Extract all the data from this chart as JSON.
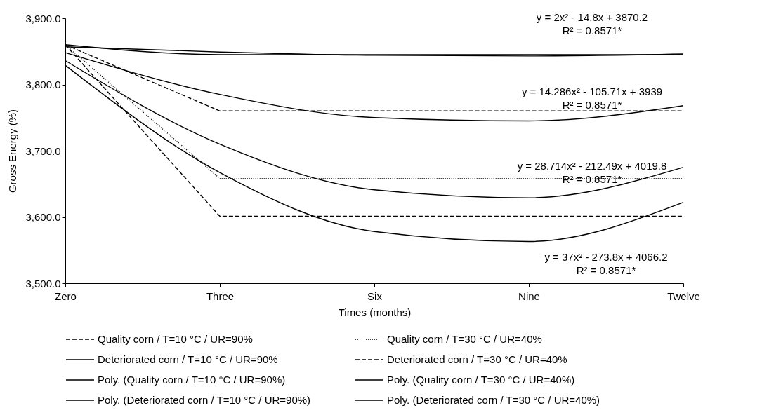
{
  "chart_data": {
    "type": "line",
    "xlabel": "Times (months)",
    "ylabel": "Gross Energy (%)",
    "categories": [
      "Zero",
      "Three",
      "Six",
      "Nine",
      "Twelve"
    ],
    "ylim": [
      3500,
      3900
    ],
    "yticks": [
      {
        "value": 3500,
        "label": "3,500.0"
      },
      {
        "value": 3600,
        "label": "3,600.0"
      },
      {
        "value": 3700,
        "label": "3,700.0"
      },
      {
        "value": 3800,
        "label": "3,800.0"
      },
      {
        "value": 3900,
        "label": "3,900.0"
      }
    ],
    "grid": false,
    "legend": "bottom",
    "marker": "none",
    "series": [
      {
        "name": "Quality corn / T=10 °C / UR=90%",
        "color": "#000000",
        "line_style": "dashed",
        "values": [
          3860,
          3760,
          3760,
          3760,
          3760
        ]
      },
      {
        "name": "Quality corn / T=30 °C / UR=40%",
        "color": "#000000",
        "line_style": "dotted",
        "values": [
          3860,
          3658,
          3658,
          3658,
          3658
        ]
      },
      {
        "name": "Deteriorated corn / T=10 °C / UR=90%",
        "color": "#000000",
        "line_style": "solid",
        "values": [
          3860,
          3845,
          3845,
          3845,
          3845
        ]
      },
      {
        "name": "Deteriorated corn / T=30 °C / UR=40%",
        "color": "#000000",
        "line_style": "dashed",
        "values": [
          3860,
          3601,
          3601,
          3601,
          3601
        ]
      },
      {
        "name": "Poly. (Quality corn / T=10 °C / UR=90%)",
        "color": "#000000",
        "line_style": "solid",
        "values": [
          3848,
          3785,
          3750,
          3745,
          3768
        ]
      },
      {
        "name": "Poly. (Quality corn / T=30 °C / UR=40%)",
        "color": "#000000",
        "line_style": "solid",
        "values": [
          3836,
          3710,
          3641,
          3629,
          3675
        ]
      },
      {
        "name": "Poly. (Deteriorated corn / T=10 °C / UR=90%)",
        "color": "#000000",
        "line_style": "solid",
        "values": [
          3857,
          3849,
          3844,
          3843,
          3846
        ]
      },
      {
        "name": "Poly. (Deteriorated corn / T=30 °C / UR=40%)",
        "color": "#000000",
        "line_style": "solid",
        "values": [
          3829,
          3667,
          3578,
          3563,
          3622
        ]
      }
    ],
    "annotations": [
      "y = 2x² - 14.8x + 3870.2\nR² = 0.8571*",
      "y = 14.286x² - 105.71x + 3939\nR² = 0.8571*",
      "y = 28.714x² - 212.49x + 4019.8\nR² = 0.8571*",
      "y = 37x² - 273.8x + 4066.2\nR² = 0.8571*"
    ]
  }
}
